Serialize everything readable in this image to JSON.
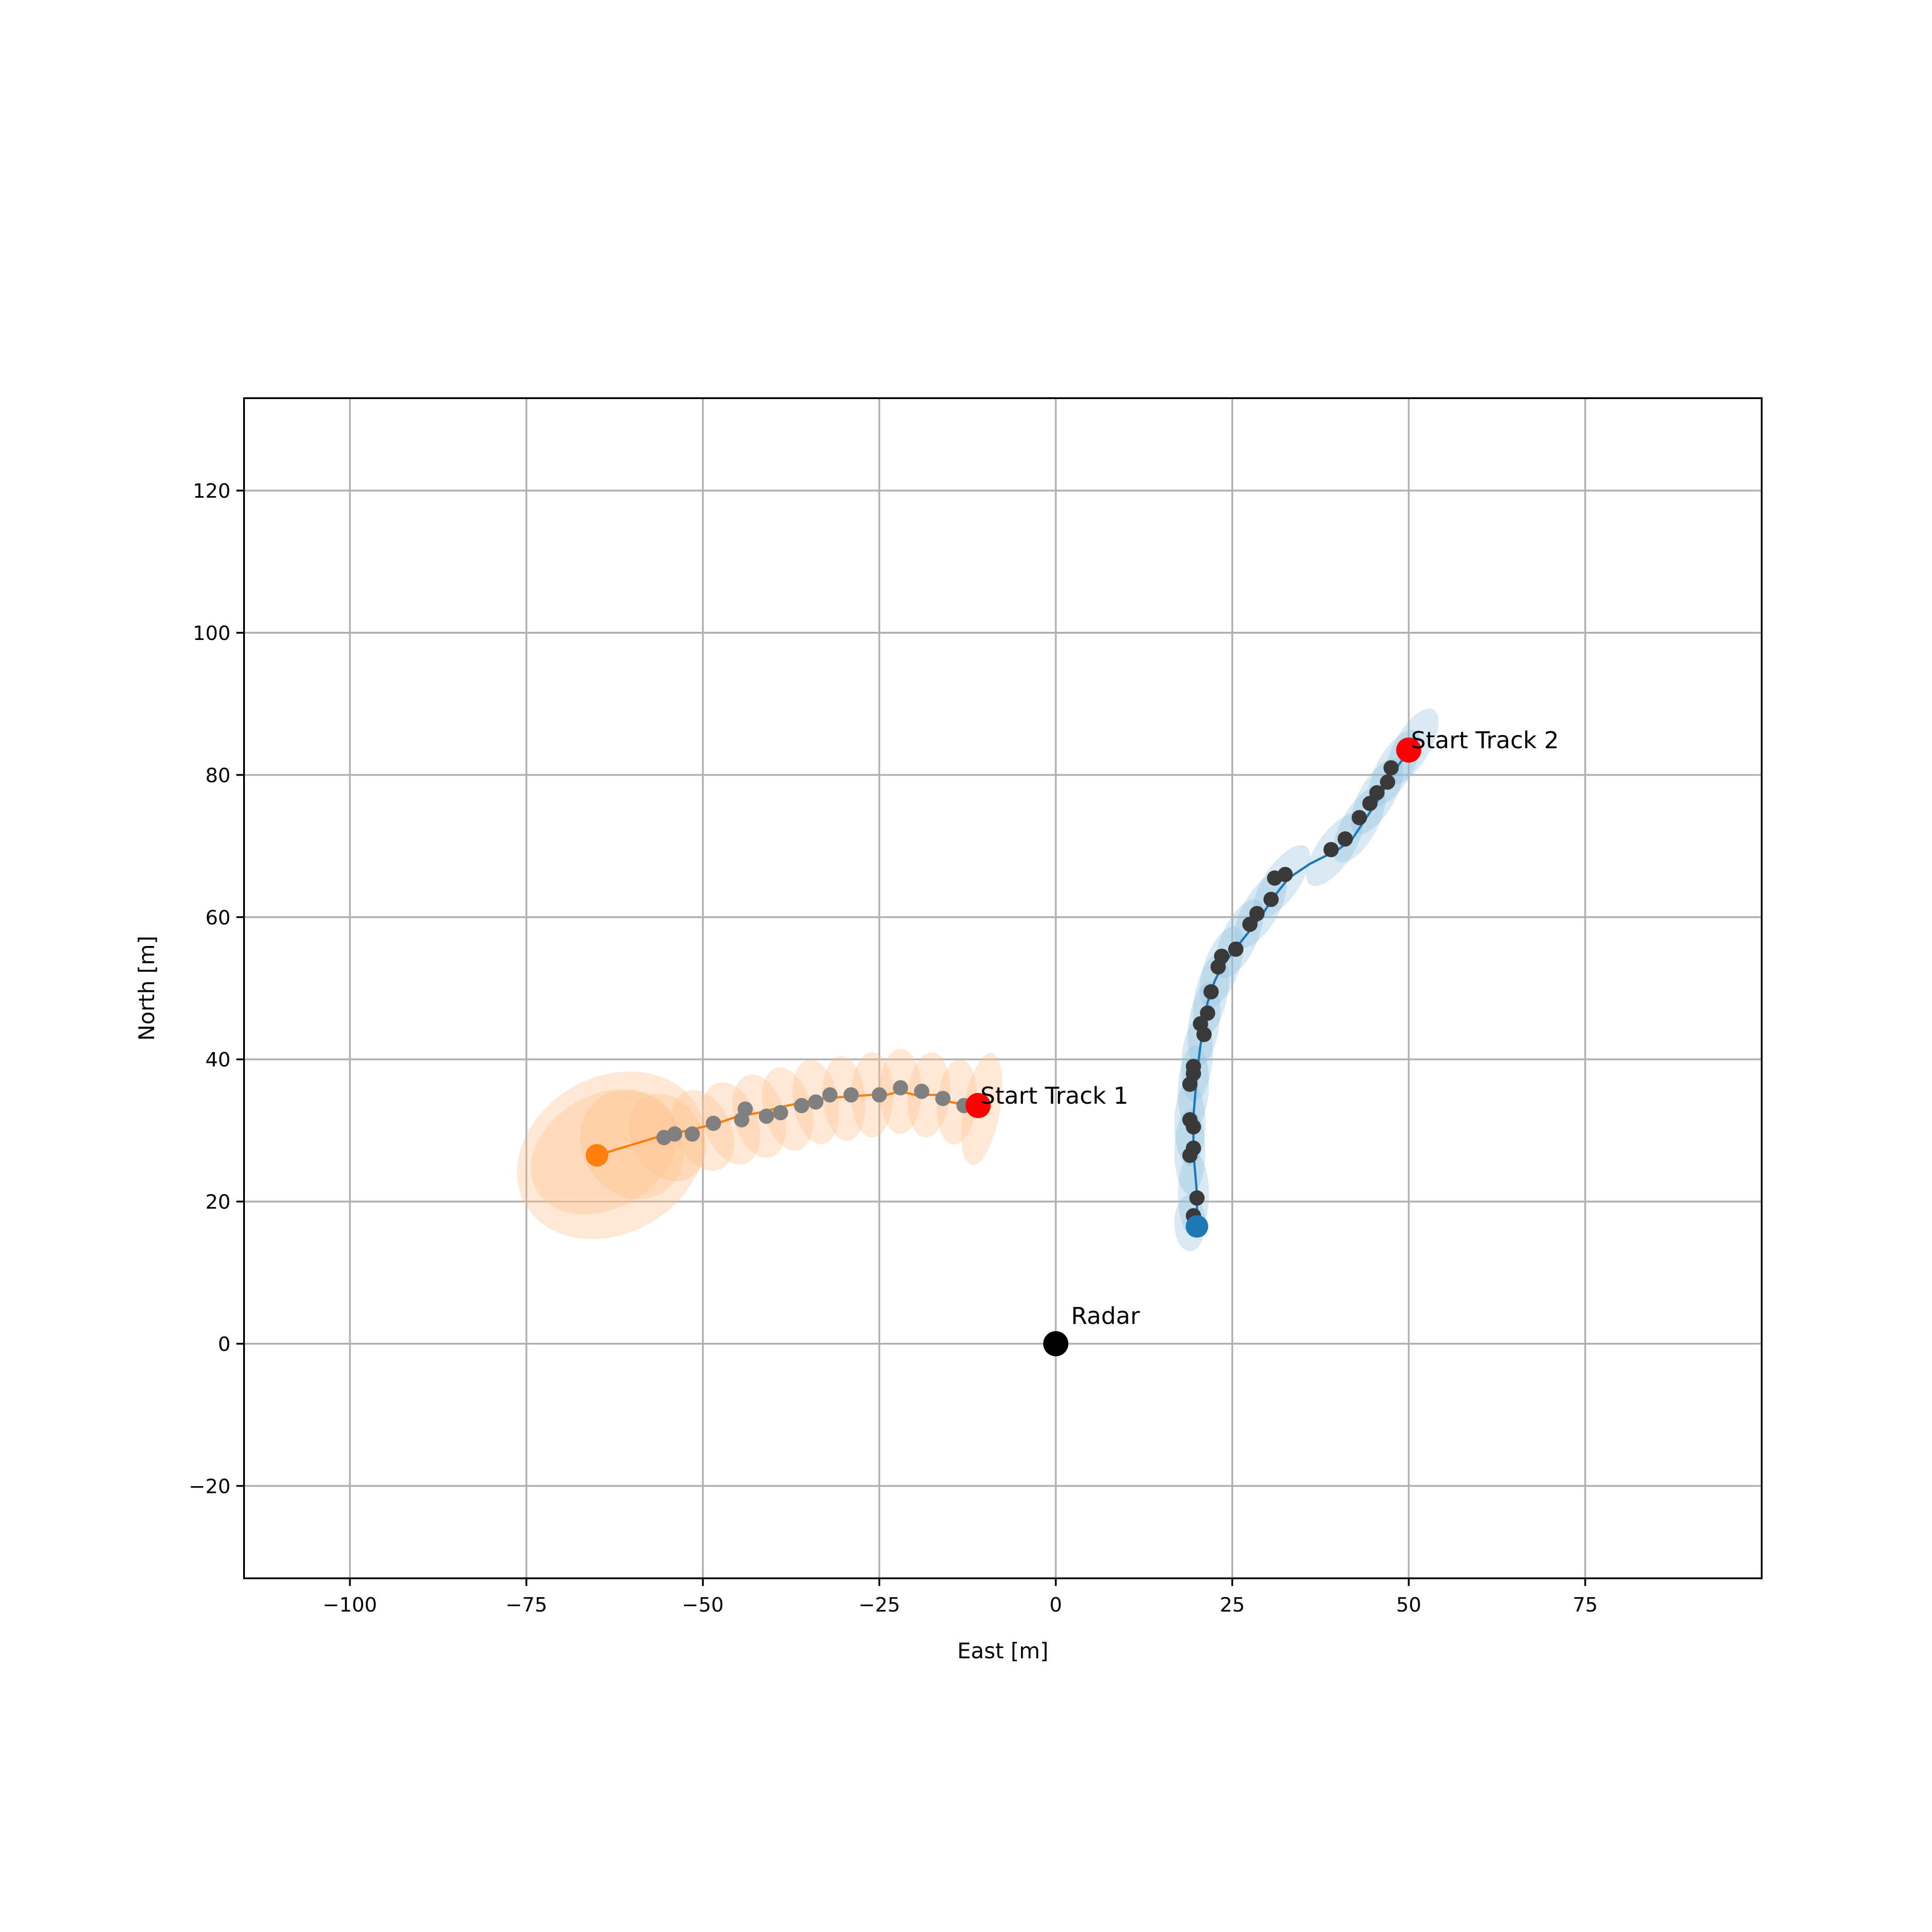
{
  "chart_data": {
    "type": "scatter",
    "title": "",
    "xlabel": "East [m]",
    "ylabel": "North [m]",
    "xlim": [
      -115,
      100
    ],
    "ylim": [
      -33,
      133
    ],
    "xticks": [
      -100,
      -75,
      -50,
      -25,
      0,
      25,
      50,
      75
    ],
    "xtick_labels": [
      "−100",
      "−75",
      "−50",
      "−25",
      "0",
      "25",
      "50",
      "75"
    ],
    "yticks": [
      -20,
      0,
      20,
      40,
      60,
      80,
      100,
      120
    ],
    "ytick_labels": [
      "−20",
      "0",
      "20",
      "40",
      "60",
      "80",
      "100",
      "120"
    ],
    "grid": true,
    "legend": null,
    "colors": {
      "track1": "#ff7f0e",
      "track1_fill": "#ffbf8a",
      "track1_meas": "#808080",
      "track2": "#1f77b4",
      "track2_fill": "#8fbfe0",
      "track2_meas": "#3a3a3a",
      "start": "#ff0000",
      "radar": "#000000"
    },
    "annotations": [
      {
        "text": "Start Track 1",
        "x": -11,
        "y": 33.5
      },
      {
        "text": "Start Track 2",
        "x": 50,
        "y": 83.5
      },
      {
        "text": "Radar",
        "x": 0,
        "y": 0
      }
    ],
    "series": [
      {
        "kind": "track",
        "x": [
          -12,
          -15,
          -17,
          -20,
          -22,
          -24,
          -26,
          -33,
          -38,
          -42,
          -45,
          -48,
          -52,
          -55,
          -65
        ],
        "y": [
          33.5,
          34,
          35,
          35,
          35.5,
          35,
          35,
          34.5,
          33.5,
          32.5,
          32,
          31,
          30,
          29.5,
          26.5
        ],
        "end": {
          "x": -65,
          "y": 26.5
        },
        "start": {
          "x": -11,
          "y": 33.5
        },
        "ellipses": [
          {
            "x": -10.5,
            "y": 33,
            "rx": 2.6,
            "ry": 8,
            "angle": 10
          },
          {
            "x": -14,
            "y": 34,
            "rx": 2.8,
            "ry": 6,
            "angle": 5
          },
          {
            "x": -18,
            "y": 35,
            "rx": 3,
            "ry": 6,
            "angle": 5
          },
          {
            "x": -22,
            "y": 35.5,
            "rx": 3,
            "ry": 6,
            "angle": 0
          },
          {
            "x": -26,
            "y": 35,
            "rx": 3,
            "ry": 6,
            "angle": 0
          },
          {
            "x": -30,
            "y": 34.5,
            "rx": 3,
            "ry": 6,
            "angle": -5
          },
          {
            "x": -34,
            "y": 34,
            "rx": 3.2,
            "ry": 6,
            "angle": -10
          },
          {
            "x": -38,
            "y": 33,
            "rx": 3.4,
            "ry": 6,
            "angle": -15
          },
          {
            "x": -42,
            "y": 32,
            "rx": 3.6,
            "ry": 6,
            "angle": -15
          },
          {
            "x": -46,
            "y": 31,
            "rx": 3.8,
            "ry": 6,
            "angle": -20
          },
          {
            "x": -50,
            "y": 30,
            "rx": 4,
            "ry": 6,
            "angle": -25
          },
          {
            "x": -55,
            "y": 29,
            "rx": 5,
            "ry": 6.5,
            "angle": -30
          },
          {
            "x": -60,
            "y": 28,
            "rx": 7,
            "ry": 8,
            "angle": -35
          },
          {
            "x": -64,
            "y": 27,
            "rx": 11,
            "ry": 8,
            "angle": -30
          },
          {
            "x": -63,
            "y": 26.5,
            "rx": 14,
            "ry": 11,
            "angle": -30
          }
        ],
        "measurements": [
          {
            "x": -13,
            "y": 33.5
          },
          {
            "x": -16,
            "y": 34.5
          },
          {
            "x": -19,
            "y": 35.5
          },
          {
            "x": -22,
            "y": 36
          },
          {
            "x": -25,
            "y": 35
          },
          {
            "x": -29,
            "y": 35
          },
          {
            "x": -32,
            "y": 35
          },
          {
            "x": -34,
            "y": 34
          },
          {
            "x": -36,
            "y": 33.5
          },
          {
            "x": -39,
            "y": 32.5
          },
          {
            "x": -41,
            "y": 32
          },
          {
            "x": -44,
            "y": 33
          },
          {
            "x": -44.5,
            "y": 31.5
          },
          {
            "x": -48.5,
            "y": 31
          },
          {
            "x": -51.5,
            "y": 29.5
          },
          {
            "x": -54,
            "y": 29.5
          },
          {
            "x": -55.5,
            "y": 29
          }
        ]
      },
      {
        "kind": "track",
        "x": [
          50,
          49,
          47.5,
          46,
          44,
          42,
          40,
          36,
          33,
          31,
          29,
          27,
          25,
          23.5,
          22.5,
          21.5,
          21,
          20.5,
          20,
          19.5,
          19.5,
          20,
          20
        ],
        "y": [
          83.5,
          82,
          80,
          77,
          74,
          71,
          69.5,
          67.5,
          65.5,
          63,
          60,
          57.5,
          55,
          53,
          51,
          48,
          45,
          42,
          38,
          32,
          27,
          21,
          16.5
        ],
        "end": {
          "x": 20,
          "y": 16.5
        },
        "start": {
          "x": 50,
          "y": 83.5
        },
        "ellipses": [
          {
            "x": 50.5,
            "y": 84,
            "rx": 2.5,
            "ry": 6,
            "angle": 30
          },
          {
            "x": 48,
            "y": 81,
            "rx": 2.5,
            "ry": 6,
            "angle": 30
          },
          {
            "x": 45.5,
            "y": 77,
            "rx": 2.5,
            "ry": 6,
            "angle": 30
          },
          {
            "x": 43,
            "y": 73,
            "rx": 2.5,
            "ry": 6,
            "angle": 30
          },
          {
            "x": 39.5,
            "y": 69.5,
            "rx": 2.5,
            "ry": 6,
            "angle": 35
          },
          {
            "x": 32,
            "y": 65,
            "rx": 2.5,
            "ry": 6,
            "angle": 35
          },
          {
            "x": 29,
            "y": 61,
            "rx": 2.5,
            "ry": 6,
            "angle": 30
          },
          {
            "x": 26,
            "y": 57,
            "rx": 2.5,
            "ry": 6,
            "angle": 25
          },
          {
            "x": 23.5,
            "y": 53,
            "rx": 2.5,
            "ry": 6,
            "angle": 20
          },
          {
            "x": 22,
            "y": 49,
            "rx": 2.3,
            "ry": 6,
            "angle": 12
          },
          {
            "x": 21,
            "y": 45,
            "rx": 2.2,
            "ry": 6,
            "angle": 8
          },
          {
            "x": 20,
            "y": 40,
            "rx": 2.2,
            "ry": 6,
            "angle": 5
          },
          {
            "x": 19.5,
            "y": 36,
            "rx": 2.2,
            "ry": 6,
            "angle": 3
          },
          {
            "x": 19,
            "y": 31,
            "rx": 2.2,
            "ry": 6,
            "angle": 0
          },
          {
            "x": 19,
            "y": 27,
            "rx": 2.2,
            "ry": 6,
            "angle": 0
          },
          {
            "x": 19.5,
            "y": 21,
            "rx": 2.2,
            "ry": 6,
            "angle": 0
          },
          {
            "x": 19,
            "y": 17,
            "rx": 2.2,
            "ry": 4,
            "angle": 0
          }
        ],
        "measurements": [
          {
            "x": 47.5,
            "y": 81
          },
          {
            "x": 47,
            "y": 79
          },
          {
            "x": 45.5,
            "y": 77.5
          },
          {
            "x": 44.5,
            "y": 76
          },
          {
            "x": 43,
            "y": 74
          },
          {
            "x": 41,
            "y": 71
          },
          {
            "x": 39,
            "y": 69.5
          },
          {
            "x": 32.5,
            "y": 66
          },
          {
            "x": 31,
            "y": 65.5
          },
          {
            "x": 30.5,
            "y": 62.5
          },
          {
            "x": 28.5,
            "y": 60.5
          },
          {
            "x": 27.5,
            "y": 59
          },
          {
            "x": 25.5,
            "y": 55.5
          },
          {
            "x": 23.5,
            "y": 54.5
          },
          {
            "x": 23,
            "y": 53
          },
          {
            "x": 22,
            "y": 49.5
          },
          {
            "x": 21.5,
            "y": 46.5
          },
          {
            "x": 20.5,
            "y": 45
          },
          {
            "x": 21,
            "y": 43.5
          },
          {
            "x": 19.5,
            "y": 39
          },
          {
            "x": 19.5,
            "y": 38
          },
          {
            "x": 19,
            "y": 36.5
          },
          {
            "x": 19,
            "y": 31.5
          },
          {
            "x": 19.5,
            "y": 30.5
          },
          {
            "x": 19.5,
            "y": 27.5
          },
          {
            "x": 19,
            "y": 26.5
          },
          {
            "x": 20,
            "y": 20.5
          },
          {
            "x": 19.5,
            "y": 18
          }
        ]
      }
    ],
    "radar": {
      "x": 0,
      "y": 0
    }
  }
}
